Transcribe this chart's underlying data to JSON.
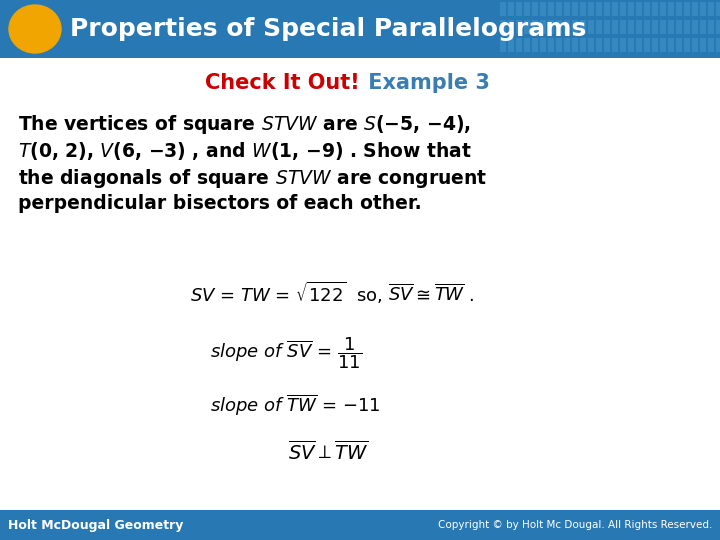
{
  "title": "Properties of Special Parallelograms",
  "title_color": "#FFFFFF",
  "title_bg_color": "#2878B4",
  "header_circle_color": "#F0A500",
  "subtitle_check": "Check It Out!",
  "subtitle_check_color": "#CC0000",
  "subtitle_example": " Example 3",
  "subtitle_example_color": "#3A7DB4",
  "body_text_color": "#000000",
  "bg_color": "#FFFFFF",
  "footer_bg_color": "#2878B4",
  "footer_left": "Holt McDougal Geometry",
  "footer_right": "Copyright © by Holt Mc Dougal. All Rights Reserved.",
  "footer_text_color": "#FFFFFF",
  "slide_bg_color": "#FFFFFF"
}
